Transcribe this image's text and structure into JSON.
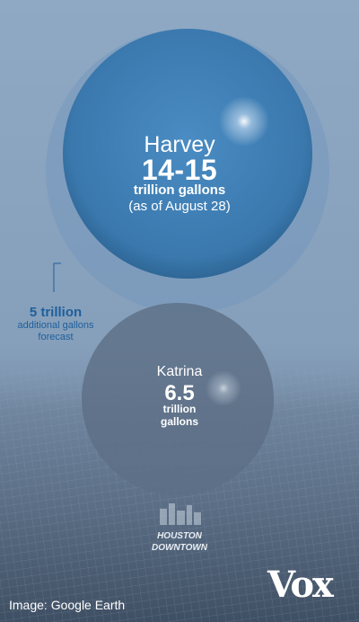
{
  "colors": {
    "sky_top": "#8fa9c4",
    "sky_bottom": "#7e97b3",
    "city": "#5a6e86",
    "harvey": "#3f7fb5",
    "katrina": "#5d6f86",
    "forecast_ring": "#6a93bd",
    "annotation": "#1e5f9c"
  },
  "chart_data": {
    "type": "bubble",
    "unit": "trillion gallons",
    "circles": [
      {
        "name": "Harvey",
        "value_label": "14-15",
        "value": 14.5,
        "unit": "trillion gallons",
        "note": "(as of August 28)"
      },
      {
        "name": "Katrina",
        "value_label": "6.5",
        "value": 6.5,
        "unit": "trillion gallons"
      }
    ],
    "annotation": {
      "value_label": "5 trillion",
      "value": 5,
      "text": [
        "additional gallons",
        "forecast"
      ]
    }
  },
  "map_label": [
    "HOUSTON",
    "DOWNTOWN"
  ],
  "credit": "Image: Google Earth",
  "brand": "Vox"
}
